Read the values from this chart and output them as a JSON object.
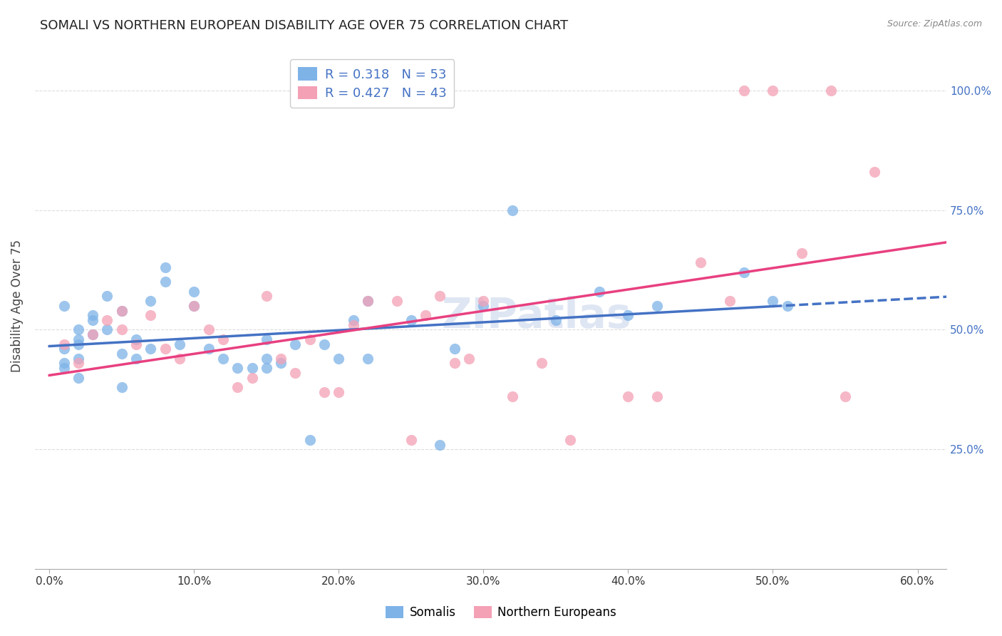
{
  "title": "SOMALI VS NORTHERN EUROPEAN DISABILITY AGE OVER 75 CORRELATION CHART",
  "source": "Source: ZipAtlas.com",
  "ylabel": "Disability Age Over 75",
  "xlabel_ticks": [
    "0.0%",
    "10.0%",
    "20.0%",
    "30.0%",
    "40.0%",
    "50.0%",
    "60.0%"
  ],
  "xlabel_vals": [
    0.0,
    0.1,
    0.2,
    0.3,
    0.4,
    0.5,
    0.6
  ],
  "ylim": [
    0.0,
    1.1
  ],
  "xlim": [
    -0.01,
    0.62
  ],
  "somali_R": 0.318,
  "somali_N": 53,
  "northern_R": 0.427,
  "northern_N": 43,
  "somali_color": "#7EB3E8",
  "northern_color": "#F4A0B5",
  "somali_line_color": "#4472C4",
  "northern_line_color": "#E84080",
  "title_fontsize": 13,
  "source_fontsize": 9,
  "legend_fontsize": 13,
  "watermark": "ZIPatlas",
  "watermark_color": "#c0cfe8",
  "somali_x": [
    0.02,
    0.01,
    0.02,
    0.03,
    0.01,
    0.02,
    0.02,
    0.01,
    0.01,
    0.02,
    0.03,
    0.03,
    0.04,
    0.04,
    0.05,
    0.05,
    0.05,
    0.06,
    0.06,
    0.07,
    0.07,
    0.08,
    0.08,
    0.09,
    0.1,
    0.1,
    0.11,
    0.12,
    0.13,
    0.14,
    0.15,
    0.15,
    0.15,
    0.16,
    0.17,
    0.18,
    0.19,
    0.2,
    0.21,
    0.22,
    0.22,
    0.25,
    0.27,
    0.28,
    0.3,
    0.32,
    0.35,
    0.38,
    0.4,
    0.42,
    0.48,
    0.5,
    0.51
  ],
  "somali_y": [
    0.47,
    0.43,
    0.5,
    0.52,
    0.55,
    0.48,
    0.44,
    0.46,
    0.42,
    0.4,
    0.49,
    0.53,
    0.57,
    0.5,
    0.54,
    0.45,
    0.38,
    0.48,
    0.44,
    0.56,
    0.46,
    0.63,
    0.6,
    0.47,
    0.55,
    0.58,
    0.46,
    0.44,
    0.42,
    0.42,
    0.42,
    0.48,
    0.44,
    0.43,
    0.47,
    0.27,
    0.47,
    0.44,
    0.52,
    0.44,
    0.56,
    0.52,
    0.26,
    0.46,
    0.55,
    0.75,
    0.52,
    0.58,
    0.53,
    0.55,
    0.62,
    0.56,
    0.55
  ],
  "northern_x": [
    0.01,
    0.02,
    0.03,
    0.04,
    0.05,
    0.05,
    0.06,
    0.07,
    0.08,
    0.09,
    0.1,
    0.11,
    0.12,
    0.13,
    0.14,
    0.15,
    0.16,
    0.17,
    0.18,
    0.19,
    0.2,
    0.21,
    0.22,
    0.24,
    0.25,
    0.26,
    0.27,
    0.28,
    0.29,
    0.3,
    0.32,
    0.34,
    0.36,
    0.4,
    0.42,
    0.45,
    0.47,
    0.48,
    0.5,
    0.52,
    0.54,
    0.55,
    0.57
  ],
  "northern_y": [
    0.47,
    0.43,
    0.49,
    0.52,
    0.5,
    0.54,
    0.47,
    0.53,
    0.46,
    0.44,
    0.55,
    0.5,
    0.48,
    0.38,
    0.4,
    0.57,
    0.44,
    0.41,
    0.48,
    0.37,
    0.37,
    0.51,
    0.56,
    0.56,
    0.27,
    0.53,
    0.57,
    0.43,
    0.44,
    0.56,
    0.36,
    0.43,
    0.27,
    0.36,
    0.36,
    0.64,
    0.56,
    1.0,
    1.0,
    0.66,
    1.0,
    0.36,
    0.83
  ],
  "bg_color": "#ffffff",
  "grid_color": "#dddddd"
}
